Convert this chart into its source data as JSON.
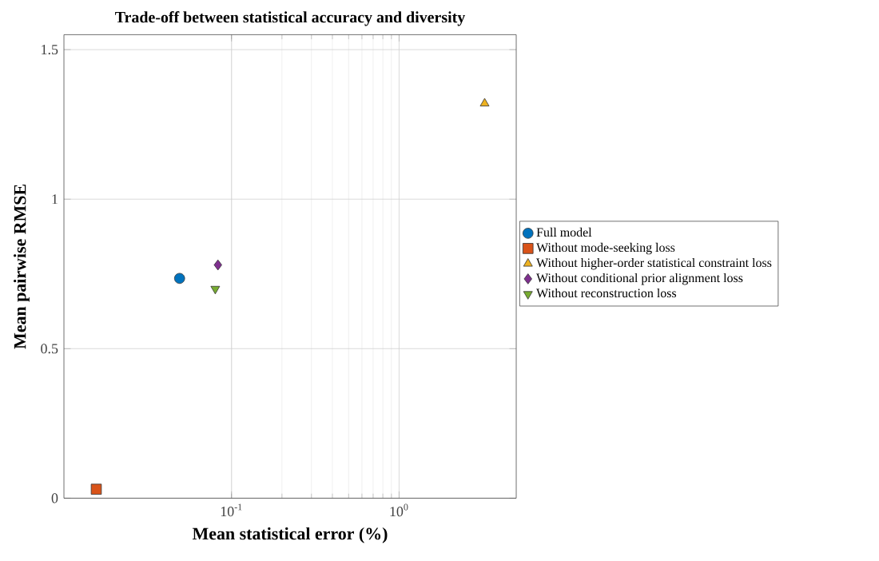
{
  "chart_data": {
    "type": "scatter",
    "title": "Trade-off between statistical accuracy and diversity",
    "xlabel": "Mean statistical error (%)",
    "ylabel": "Mean pairwise RMSE",
    "log": "x",
    "xlim": [
      0.01,
      5
    ],
    "ylim": [
      0,
      1.55
    ],
    "xticks": [
      {
        "value": 0.1,
        "label": "10$^{-1}$"
      },
      {
        "value": 1,
        "label": "10$^{0}$"
      }
    ],
    "yticks": [
      0,
      0.5,
      1,
      1.5
    ],
    "grid": true,
    "legend": "right",
    "series": [
      {
        "name": "Full model",
        "color": "#0072bd",
        "marker": "circle",
        "x": [
          0.049
        ],
        "values": [
          0.735
        ]
      },
      {
        "name": "Without mode-seeking loss",
        "color": "#d95319",
        "marker": "square",
        "x": [
          0.0156
        ],
        "values": [
          0.03
        ]
      },
      {
        "name": "Without higher-order statistical constraint loss",
        "color": "#edb120",
        "marker": "triangle",
        "x": [
          3.24
        ],
        "values": [
          1.32
        ]
      },
      {
        "name": "Without conditional prior alignment loss",
        "color": "#7e2f8e",
        "marker": "diamond",
        "x": [
          0.083
        ],
        "values": [
          0.78
        ]
      },
      {
        "name": "Without reconstruction loss",
        "color": "#77ac30",
        "marker": "triangle-down",
        "x": [
          0.08
        ],
        "values": [
          0.7
        ]
      }
    ]
  }
}
